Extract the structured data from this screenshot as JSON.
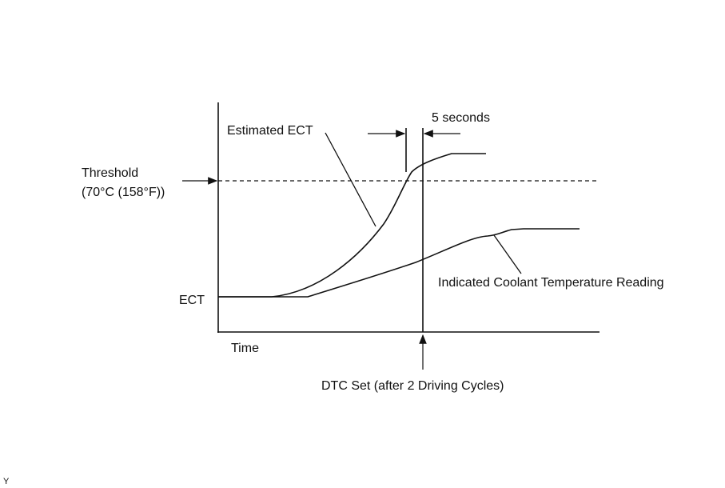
{
  "labels": {
    "five_seconds": "5 seconds",
    "estimated_ect": "Estimated ECT",
    "threshold": "Threshold",
    "threshold_value": "(70°C (158°F))",
    "ect": "ECT",
    "time": "Time",
    "indicated": "Indicated Coolant Temperature Reading",
    "dtc_set": "DTC Set (after 2 Driving Cycles)",
    "corner": "Y"
  }
}
